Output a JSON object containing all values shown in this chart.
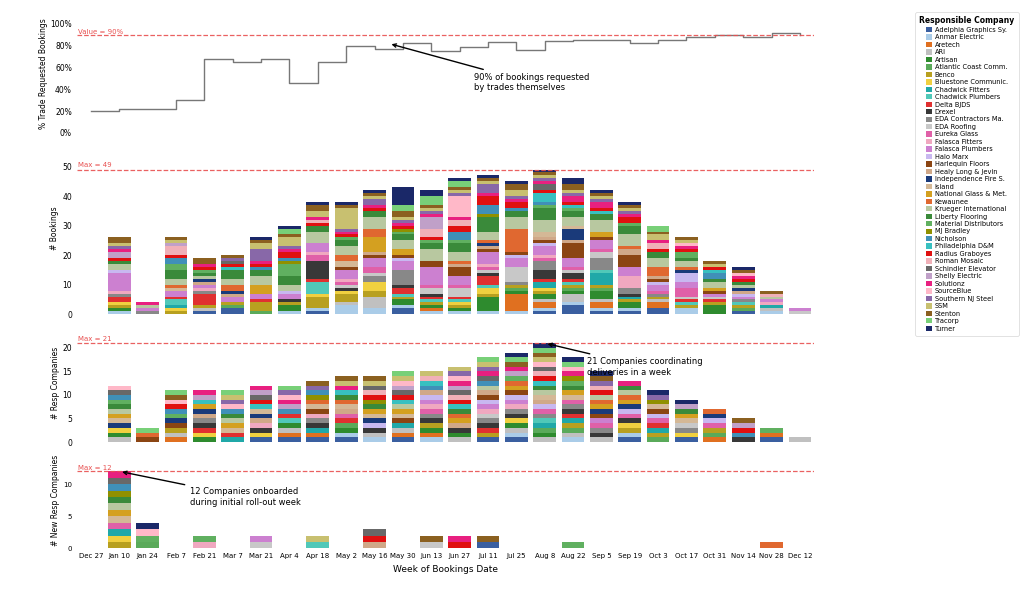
{
  "companies": [
    "Adelphia Graphics Sy.",
    "Anmar Electric",
    "Aretech",
    "ARI",
    "Artisan",
    "Atlantic Coast Comm.",
    "Benco",
    "Bluestone Communic.",
    "Chadwick Fitters",
    "Chadwick Plumbers",
    "Delta BJDS",
    "Drexel",
    "EDA Contractors Ma.",
    "EDA Roofing",
    "Eureka Glass",
    "Falasca Fitters",
    "Falasca Plumbers",
    "Halo Marx",
    "Harlequin Floors",
    "Healy Long & Jevin",
    "Independence Fire S.",
    "Island",
    "National Glass & Met.",
    "Kewaunee",
    "Krueger International",
    "Liberty Flooring",
    "Material Distributors",
    "MJ Bradley",
    "Nicholson",
    "Philadelphia D&M",
    "Radius Graboyes",
    "Roman Mosaic",
    "Schindler Elevator",
    "Shelly Electric",
    "Solutionz",
    "SourceBlue",
    "Southern NJ Steel",
    "SSM",
    "Stenton",
    "Tracorp",
    "Turner"
  ],
  "company_colors": [
    "#3a5fa0",
    "#aacce8",
    "#e07020",
    "#c0c0c0",
    "#2e8b2e",
    "#5aaa5a",
    "#b8a020",
    "#f0d040",
    "#20a8a8",
    "#50c8b8",
    "#e03030",
    "#383838",
    "#888888",
    "#c8c8c8",
    "#e060a8",
    "#f0a8c0",
    "#cc80d0",
    "#c8b8f0",
    "#8b4513",
    "#d0a888",
    "#1a3a7a",
    "#d4b896",
    "#d4a020",
    "#e06830",
    "#b8c8a0",
    "#3a8a3a",
    "#60b060",
    "#909000",
    "#4090b8",
    "#38c0c0",
    "#e01010",
    "#f0b0b8",
    "#686868",
    "#c0a0c8",
    "#e82080",
    "#ffb8c8",
    "#8868a8",
    "#c8c070",
    "#8b6020",
    "#78d078",
    "#1a2868"
  ],
  "x_labels": [
    "Dec 27",
    "Jan 10",
    "Jan 24",
    "Feb 7",
    "Feb 21",
    "Mar 7",
    "Mar 21",
    "Apr 4",
    "Apr 18",
    "May 2",
    "May 16",
    "May 30",
    "Jun 13",
    "Jun 27",
    "Jul 11",
    "Jul 25",
    "Aug 8",
    "Aug 22",
    "Sep 5",
    "Sep 19",
    "Oct 3",
    "Oct 17",
    "Oct 31",
    "Nov 14",
    "Nov 28",
    "Dec 12"
  ],
  "pct_steps_y": [
    20,
    20,
    20,
    22,
    22,
    30,
    30,
    68,
    68,
    65,
    65,
    68,
    68,
    46,
    46,
    65,
    65,
    80,
    80,
    77,
    77,
    82,
    82,
    75,
    75,
    79,
    79,
    83,
    83,
    76,
    76,
    84,
    84,
    85,
    85,
    85,
    85,
    82,
    82,
    85,
    85,
    88,
    88,
    90,
    90,
    88,
    88,
    92,
    92,
    90,
    90,
    88,
    88,
    95,
    95,
    97,
    97,
    97,
    97,
    97,
    97,
    80,
    80,
    92,
    92,
    97,
    97,
    97,
    97,
    97,
    97,
    90,
    90,
    97,
    97,
    97,
    97,
    97,
    97,
    97,
    97,
    97,
    97,
    97
  ],
  "pct_ref_line": 90,
  "bookings_totals": [
    0,
    26,
    4,
    26,
    19,
    20,
    26,
    30,
    38,
    38,
    42,
    43,
    42,
    46,
    47,
    45,
    49,
    46,
    42,
    38,
    30,
    26,
    18,
    16,
    8,
    2
  ],
  "resp_totals": [
    0,
    12,
    3,
    11,
    11,
    11,
    12,
    12,
    13,
    14,
    14,
    15,
    15,
    16,
    18,
    19,
    21,
    18,
    15,
    13,
    11,
    9,
    7,
    5,
    3,
    1
  ],
  "new_totals": [
    0,
    12,
    4,
    0,
    2,
    0,
    2,
    0,
    2,
    0,
    3,
    0,
    2,
    2,
    2,
    0,
    0,
    1,
    0,
    0,
    0,
    0,
    0,
    0,
    1,
    0
  ],
  "dashed_line_color": "#e85050",
  "line_color": "#777777",
  "bookings_max_label": "Max = 49",
  "resp_max_label": "Max = 21",
  "new_max_label": "Max = 12",
  "bookings_max": 49,
  "resp_max": 21,
  "new_max": 12,
  "pct_annotation_text": "90% of bookings requested\nby trades themselves",
  "resp_annotation_text": "21 Companies coordinating\ndeliveries in a week",
  "new_annotation_text": "12 Companies onboarded\nduring initial roll-out week"
}
